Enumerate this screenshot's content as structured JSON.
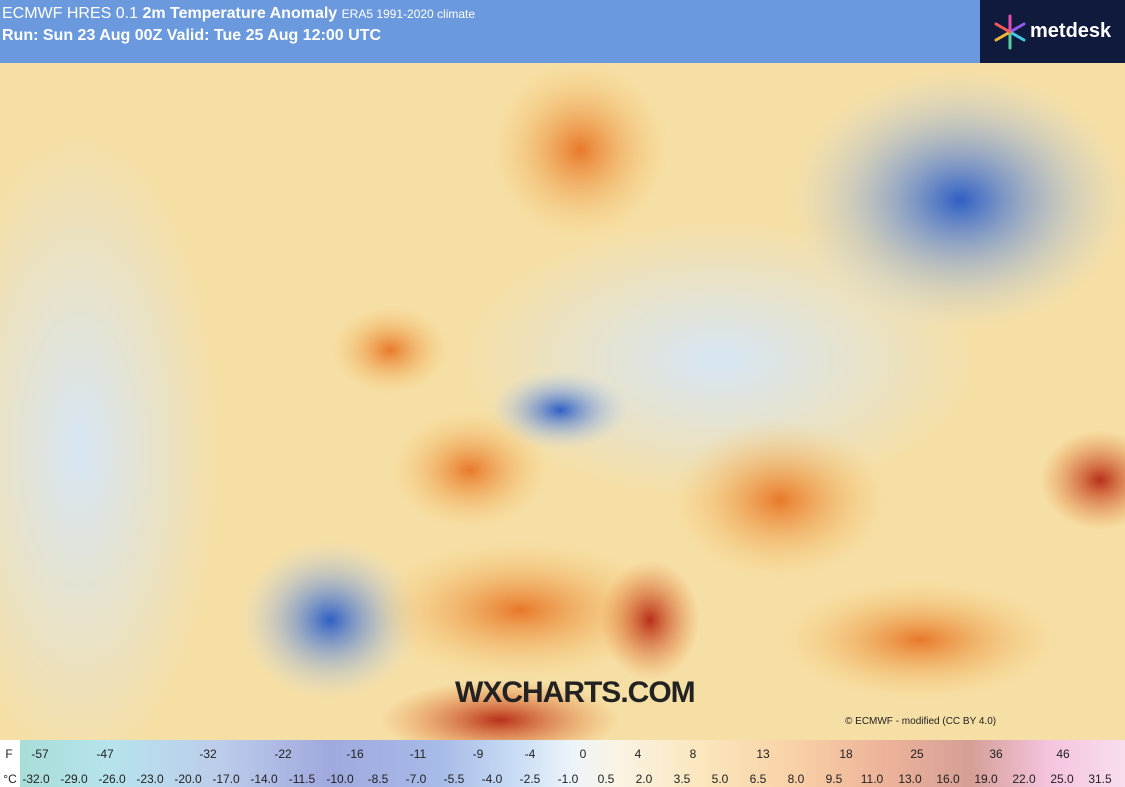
{
  "header": {
    "model": "ECMWF HRES 0.1",
    "title": "2m Temperature Anomaly",
    "climate": "ERA5 1991-2020 climate",
    "run": "Run: Sun 23 Aug 00Z Valid: Tue 25 Aug 12:00 UTC"
  },
  "brand": "metdesk",
  "watermark": "WXCHARTS.COM",
  "credit": "© ECMWF - modified (CC BY 4.0)",
  "legend": {
    "f_unit": "F",
    "f_labels": [
      "-57",
      "-47",
      "-32",
      "-22",
      "-16",
      "-11",
      "-9",
      "-4",
      "0",
      "4",
      "8",
      "13",
      "18",
      "25",
      "36",
      "46"
    ],
    "c_unit": "°C",
    "c_labels": [
      "-32.0",
      "-29.0",
      "-26.0",
      "-23.0",
      "-20.0",
      "-17.0",
      "-14.0",
      "-11.5",
      "-10.0",
      "-8.5",
      "-7.0",
      "-5.5",
      "-4.0",
      "-2.5",
      "-1.0",
      "0.5",
      "2.0",
      "3.5",
      "5.0",
      "6.5",
      "8.0",
      "9.5",
      "11.0",
      "13.0",
      "16.0",
      "19.0",
      "22.0",
      "25.0",
      "31.5"
    ]
  }
}
